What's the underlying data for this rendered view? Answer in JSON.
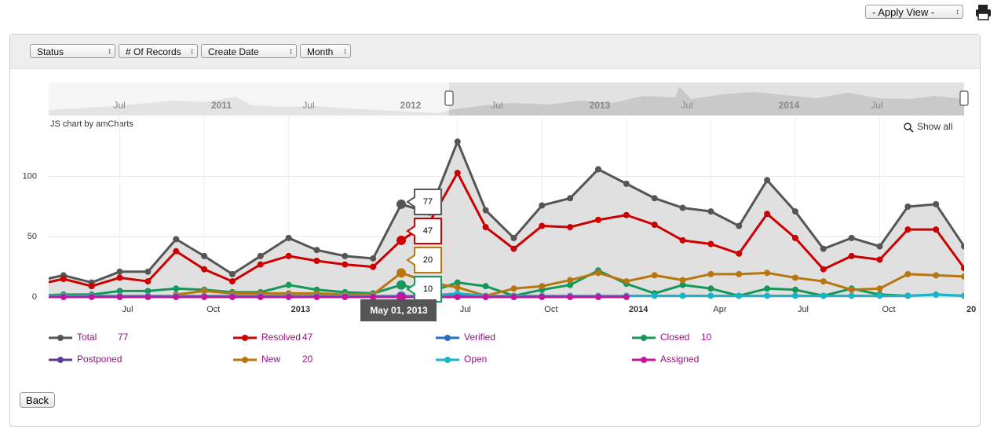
{
  "toolbar": {
    "apply_view": "- Apply View -"
  },
  "filters": [
    "Status",
    "# Of Records",
    "Create Date",
    "Month"
  ],
  "scrollbar_labels": [
    "Jul",
    "2011",
    "Jul",
    "2012",
    "Jul",
    "2013",
    "Jul",
    "2014",
    "Jul"
  ],
  "back_button": "Back",
  "chart_data": {
    "type": "line",
    "credit": "JS chart by amCharts",
    "zoom_button": "Show all",
    "cursor_label": "May 01, 2013",
    "categories": [
      null,
      null,
      null,
      "Jul",
      null,
      null,
      "Oct",
      null,
      null,
      "2013",
      null,
      null,
      null,
      null,
      null,
      "Jul",
      null,
      null,
      "Oct",
      null,
      null,
      "2014",
      null,
      null,
      "Apr",
      null,
      null,
      "Jul",
      null,
      null,
      "Oct",
      null,
      null,
      "20"
    ],
    "ylim": [
      0,
      150
    ],
    "yticks": [
      0,
      50,
      100
    ],
    "grid": true,
    "series": [
      {
        "name": "Total",
        "color": "#555555",
        "area": true,
        "values": [
          13,
          18,
          12,
          21,
          21,
          48,
          34,
          19,
          34,
          49,
          39,
          34,
          32,
          77,
          70,
          129,
          72,
          49,
          76,
          82,
          106,
          94,
          82,
          74,
          71,
          59,
          97,
          71,
          40,
          49,
          42,
          75,
          77,
          42
        ]
      },
      {
        "name": "Resolved",
        "color": "#cc0000",
        "values": [
          10,
          15,
          9,
          16,
          13,
          38,
          23,
          13,
          27,
          34,
          30,
          27,
          25,
          47,
          62,
          103,
          58,
          40,
          59,
          58,
          64,
          68,
          60,
          47,
          44,
          36,
          69,
          49,
          23,
          34,
          31,
          56,
          56,
          24
        ]
      },
      {
        "name": "Verified",
        "color": "#2a6fbf",
        "values": [
          null,
          null,
          null,
          null,
          null,
          null,
          null,
          null,
          null,
          null,
          null,
          null,
          null,
          null,
          2,
          2,
          1,
          0,
          null,
          null,
          null,
          null,
          null,
          null,
          null,
          null,
          null,
          null,
          null,
          null,
          null,
          null,
          null,
          null
        ]
      },
      {
        "name": "Closed",
        "color": "#13985a",
        "values": [
          1,
          2,
          2,
          5,
          5,
          7,
          6,
          4,
          4,
          10,
          6,
          4,
          3,
          10,
          4,
          12,
          9,
          1,
          6,
          10,
          22,
          11,
          3,
          10,
          7,
          1,
          7,
          6,
          1,
          7,
          2,
          1,
          2,
          1
        ]
      },
      {
        "name": "Postponed",
        "color": "#5b3d91",
        "values": [
          null,
          null,
          null,
          null,
          null,
          null,
          null,
          null,
          null,
          null,
          null,
          null,
          null,
          null,
          null,
          null,
          null,
          null,
          null,
          null,
          null,
          null,
          null,
          null,
          null,
          null,
          null,
          null,
          null,
          null,
          null,
          null,
          null,
          null
        ]
      },
      {
        "name": "New",
        "color": "#b8770e",
        "values": [
          null,
          null,
          null,
          null,
          null,
          2,
          5,
          3,
          3,
          3,
          3,
          2,
          2,
          20,
          12,
          8,
          1,
          7,
          9,
          14,
          20,
          13,
          18,
          14,
          19,
          19,
          20,
          16,
          13,
          6,
          7,
          19,
          18,
          17
        ]
      },
      {
        "name": "Open",
        "color": "#17b5c9",
        "values": [
          1,
          1,
          1,
          1,
          1,
          1,
          1,
          1,
          1,
          1,
          1,
          1,
          1,
          1,
          1,
          3,
          1,
          1,
          1,
          1,
          1,
          1,
          1,
          1,
          1,
          1,
          1,
          1,
          1,
          1,
          1,
          1,
          2,
          1
        ]
      },
      {
        "name": "Assigned",
        "color": "#c4159c",
        "values": [
          0,
          0,
          0,
          0,
          0,
          0,
          0,
          0,
          0,
          0,
          0,
          0,
          0,
          0,
          0,
          0,
          0,
          0,
          0,
          0,
          0,
          0,
          null,
          null,
          null,
          null,
          null,
          null,
          null,
          null,
          null,
          null,
          null,
          null
        ]
      }
    ]
  }
}
